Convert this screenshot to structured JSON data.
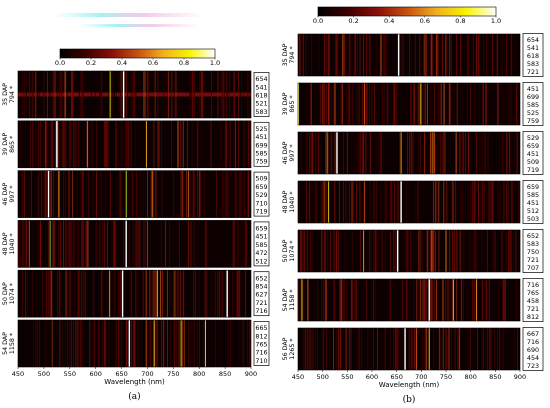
{
  "colorbar": {
    "min": 0.0,
    "max": 1.0,
    "ticks": [
      "0.0",
      "0.2",
      "0.4",
      "0.6",
      "0.8",
      "1.0"
    ],
    "colors": [
      "#000000",
      "#3d0000",
      "#8a0f0a",
      "#c8500e",
      "#f0b020",
      "#f8f400",
      "#ffffff"
    ]
  },
  "chart_data": [
    {
      "panel_label": "(a)",
      "type": "heatmap",
      "xlabel": "Wavelength (nm)",
      "xlim": [
        450,
        900
      ],
      "xticks": [
        "450",
        "500",
        "550",
        "600",
        "650",
        "700",
        "750",
        "800",
        "850",
        "900"
      ],
      "rows": [
        {
          "dap": "35 DAP",
          "dose": "794 *",
          "wavelengths": [
            "654",
            "541",
            "618",
            "521",
            "583"
          ],
          "bright_lines": [
            {
              "x": 628,
              "v": 0.6,
              "c": "#c8c000"
            },
            {
              "x": 654,
              "v": 1.0
            },
            {
              "x": 541,
              "v": 0.5
            }
          ],
          "band": {
            "y": 0.5,
            "c": "#b01010"
          }
        },
        {
          "dap": "39 DAP",
          "dose": "865 *",
          "wavelengths": [
            "525",
            "451",
            "699",
            "585",
            "759"
          ],
          "bright_lines": [
            {
              "x": 525,
              "v": 1.0
            },
            {
              "x": 698,
              "v": 0.65
            },
            {
              "x": 759,
              "v": 0.5
            },
            {
              "x": 584,
              "v": 0.55
            }
          ]
        },
        {
          "dap": "46 DAP",
          "dose": "997 *",
          "wavelengths": [
            "509",
            "659",
            "529",
            "710",
            "719"
          ],
          "bright_lines": [
            {
              "x": 509,
              "v": 1.0
            },
            {
              "x": 659,
              "v": 0.8,
              "c": "#90d020"
            },
            {
              "x": 529,
              "v": 0.6
            },
            {
              "x": 710,
              "v": 0.5
            }
          ]
        },
        {
          "dap": "48 DAP",
          "dose": "1040 *",
          "wavelengths": [
            "659",
            "451",
            "585",
            "472",
            "512"
          ],
          "bright_lines": [
            {
              "x": 659,
              "v": 1.0
            },
            {
              "x": 512,
              "v": 0.6,
              "c": "#40c040"
            },
            {
              "x": 585,
              "v": 0.45
            },
            {
              "x": 472,
              "v": 0.45
            }
          ]
        },
        {
          "dap": "50 DAP",
          "dose": "1074 *",
          "wavelengths": [
            "652",
            "854",
            "627",
            "721",
            "716"
          ],
          "bright_lines": [
            {
              "x": 652,
              "v": 1.0
            },
            {
              "x": 854,
              "v": 1.0
            },
            {
              "x": 627,
              "v": 0.75,
              "c": "#c8a000"
            },
            {
              "x": 719,
              "v": 0.7
            }
          ]
        },
        {
          "dap": "54 DAP",
          "dose": "1158 *",
          "wavelengths": [
            "665",
            "812",
            "765",
            "716",
            "710"
          ],
          "bright_lines": [
            {
              "x": 665,
              "v": 1.0
            },
            {
              "x": 812,
              "v": 0.75
            },
            {
              "x": 765,
              "v": 0.8,
              "c": "#c8c000"
            },
            {
              "x": 713,
              "v": 0.7
            }
          ]
        }
      ]
    },
    {
      "panel_label": "(b)",
      "type": "heatmap",
      "xlabel": "Wavelength (nm)",
      "xlim": [
        450,
        900
      ],
      "xticks": [
        "450",
        "500",
        "550",
        "600",
        "650",
        "700",
        "750",
        "800",
        "850",
        "900"
      ],
      "rows": [
        {
          "dap": "35 DAP",
          "dose": "794 *",
          "wavelengths": [
            "654",
            "541",
            "618",
            "583",
            "721"
          ],
          "bright_lines": [
            {
              "x": 654,
              "v": 1.0
            },
            {
              "x": 541,
              "v": 0.5
            },
            {
              "x": 618,
              "v": 0.45
            },
            {
              "x": 721,
              "v": 0.4
            }
          ]
        },
        {
          "dap": "39 DAP",
          "dose": "865 *",
          "wavelengths": [
            "451",
            "699",
            "585",
            "525",
            "759"
          ],
          "bright_lines": [
            {
              "x": 451,
              "v": 0.9
            },
            {
              "x": 699,
              "v": 0.7
            },
            {
              "x": 585,
              "v": 0.5
            },
            {
              "x": 525,
              "v": 0.45
            }
          ]
        },
        {
          "dap": "46 DAP",
          "dose": "997 *",
          "wavelengths": [
            "529",
            "659",
            "451",
            "509",
            "719"
          ],
          "bright_lines": [
            {
              "x": 529,
              "v": 1.0
            },
            {
              "x": 659,
              "v": 0.6,
              "c": "#d0a000"
            },
            {
              "x": 509,
              "v": 0.55
            },
            {
              "x": 719,
              "v": 0.45
            }
          ]
        },
        {
          "dap": "48 DAP",
          "dose": "1040 *",
          "wavelengths": [
            "659",
            "585",
            "451",
            "512",
            "503"
          ],
          "bright_lines": [
            {
              "x": 659,
              "v": 1.0
            },
            {
              "x": 512,
              "v": 0.6,
              "c": "#d0c000"
            },
            {
              "x": 585,
              "v": 0.45
            },
            {
              "x": 503,
              "v": 0.45
            }
          ]
        },
        {
          "dap": "50 DAP",
          "dose": "1074 *",
          "wavelengths": [
            "652",
            "583",
            "750",
            "721",
            "707"
          ],
          "bright_lines": [
            {
              "x": 652,
              "v": 1.0
            },
            {
              "x": 583,
              "v": 0.6
            },
            {
              "x": 750,
              "v": 0.55
            },
            {
              "x": 721,
              "v": 0.5
            }
          ]
        },
        {
          "dap": "54 DAP",
          "dose": "1158 *",
          "wavelengths": [
            "716",
            "765",
            "458",
            "721",
            "812"
          ],
          "bright_lines": [
            {
              "x": 716,
              "v": 1.0
            },
            {
              "x": 765,
              "v": 0.8,
              "c": "#d0c000"
            },
            {
              "x": 458,
              "v": 0.75,
              "c": "#d0c000"
            },
            {
              "x": 812,
              "v": 0.6
            },
            {
              "x": 470,
              "v": 0.5
            }
          ]
        },
        {
          "dap": "56 DAP",
          "dose": "1265 *",
          "wavelengths": [
            "667",
            "716",
            "690",
            "454",
            "723"
          ],
          "bright_lines": [
            {
              "x": 667,
              "v": 1.0
            },
            {
              "x": 716,
              "v": 0.7
            },
            {
              "x": 690,
              "v": 0.5
            }
          ]
        }
      ]
    }
  ]
}
